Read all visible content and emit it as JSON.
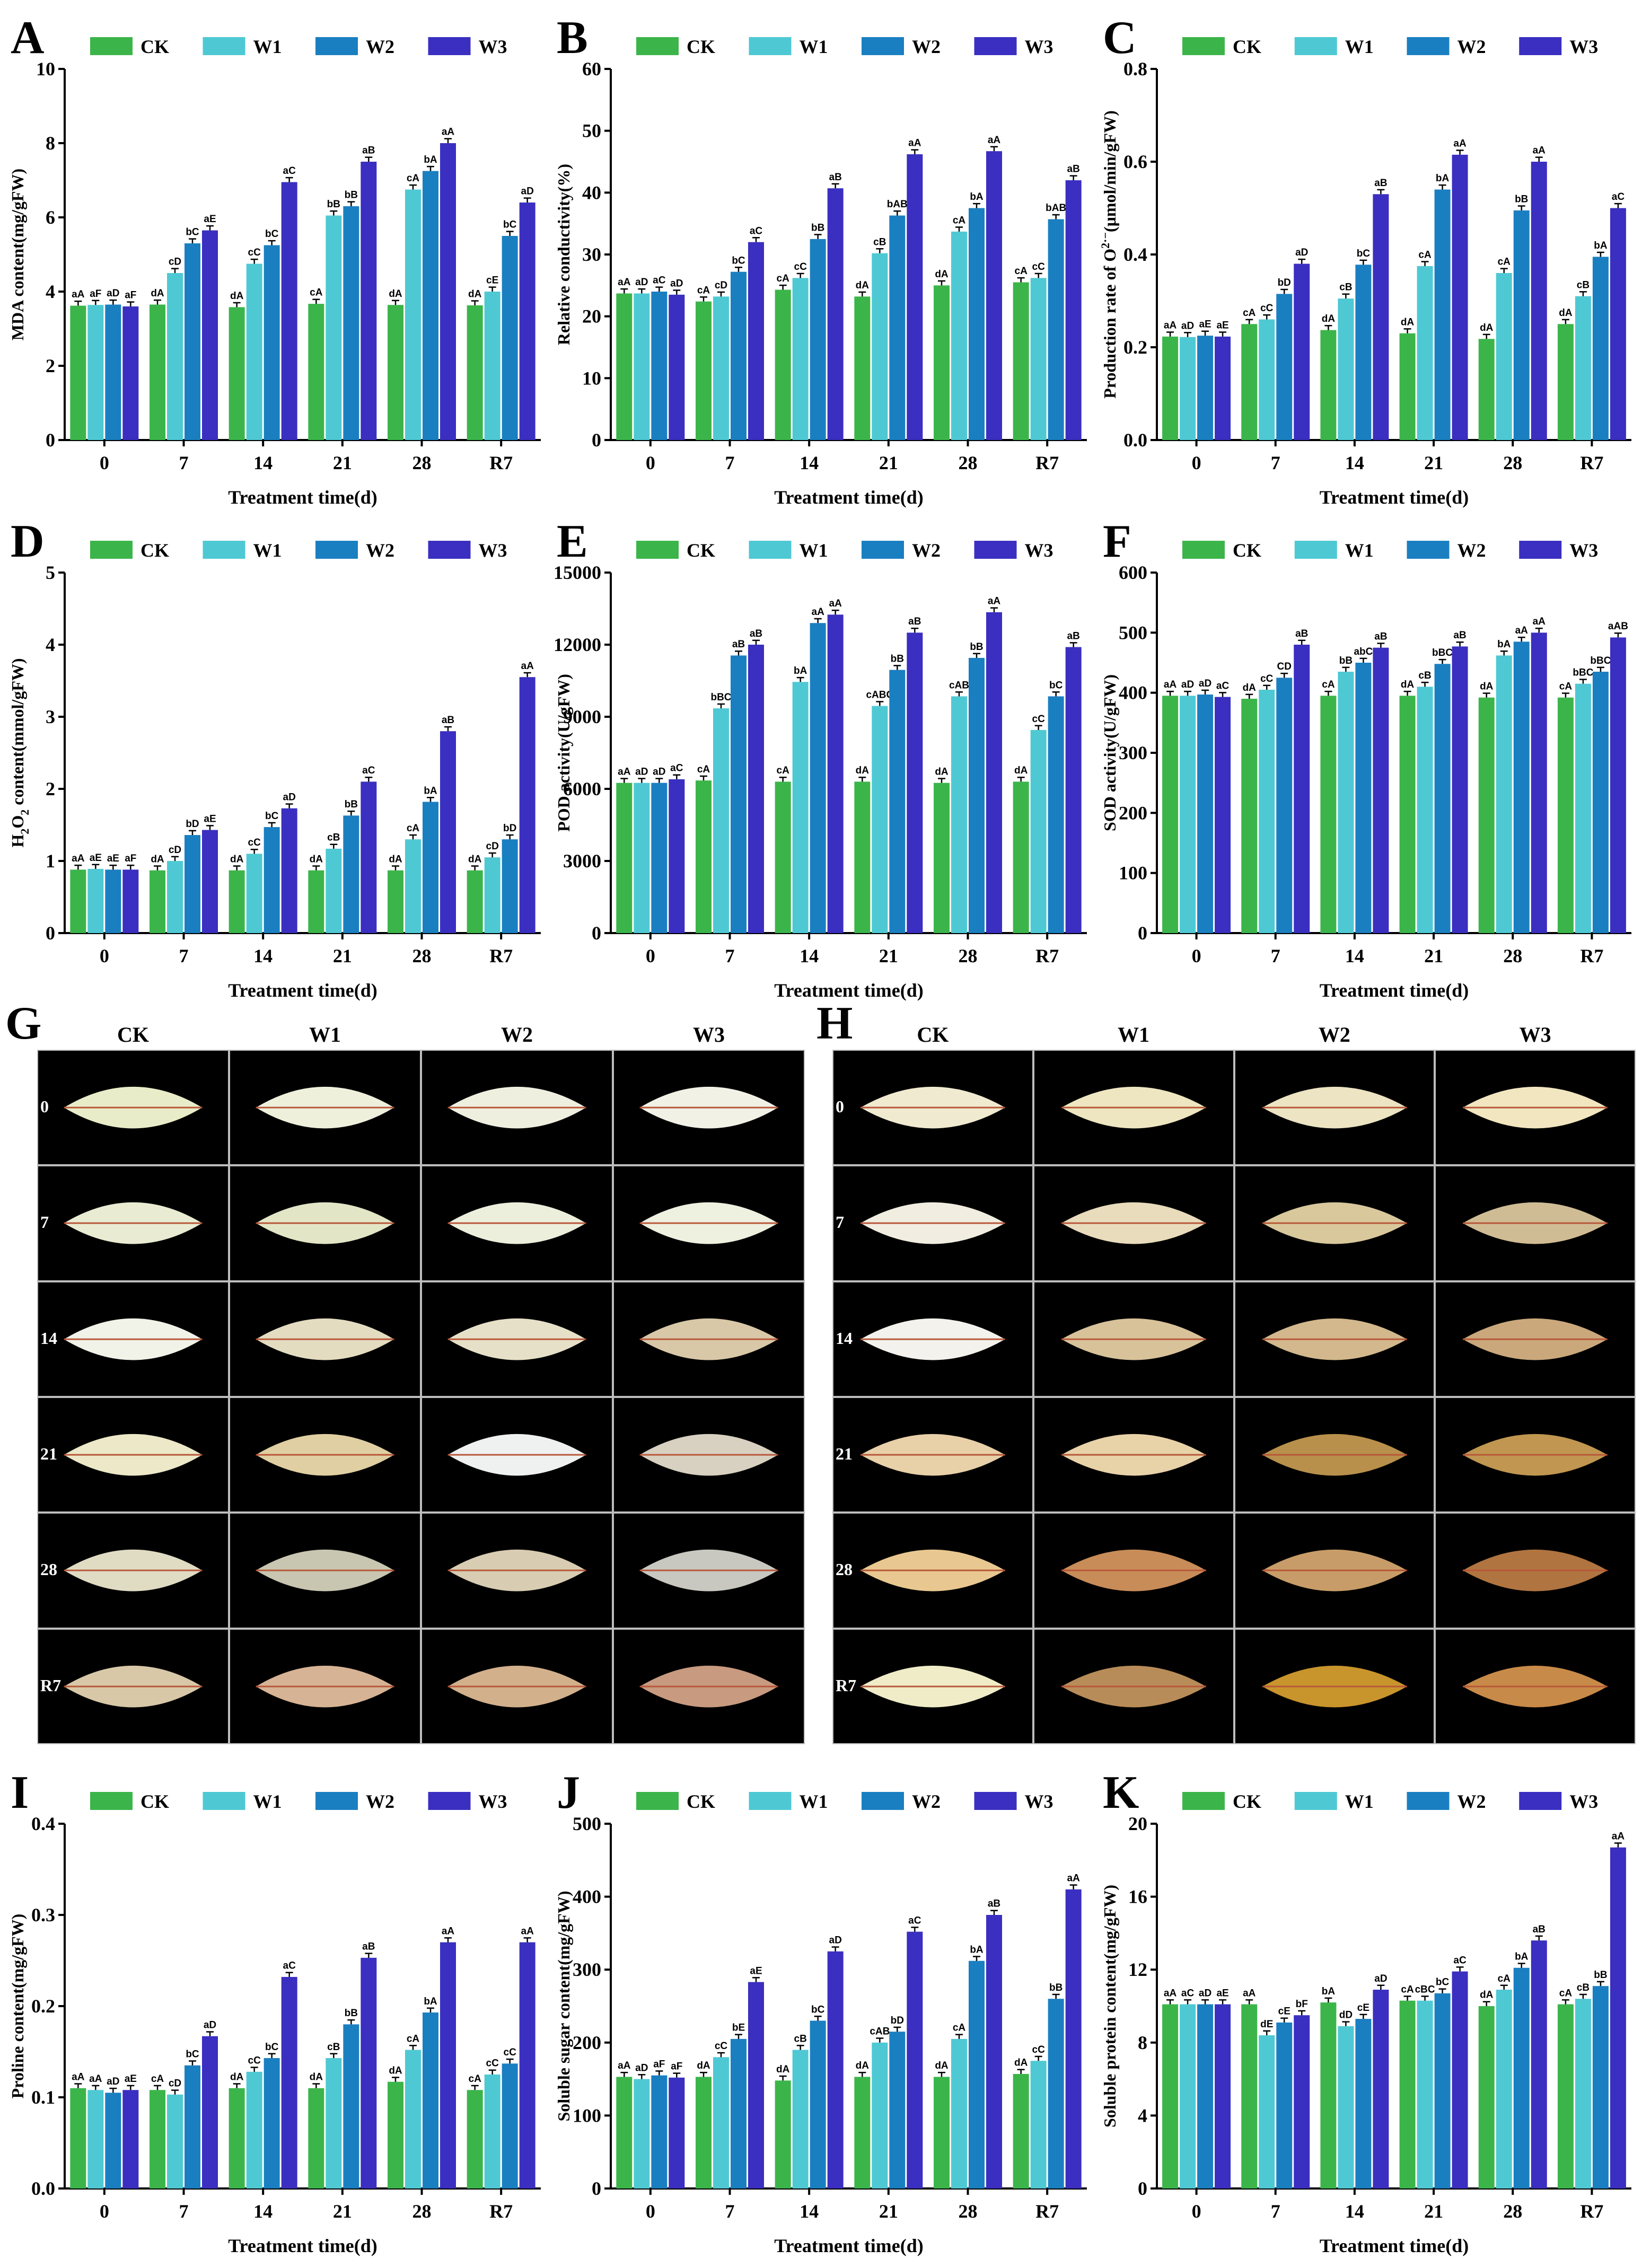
{
  "legend": {
    "series": [
      "CK",
      "W1",
      "W2",
      "W3"
    ],
    "colors": [
      "#3bb54a",
      "#4ec9d4",
      "#1a7fc1",
      "#3a2fc0"
    ]
  },
  "x_label": "Treatment time(d)",
  "categories": [
    "0",
    "7",
    "14",
    "21",
    "28",
    "R7"
  ],
  "chart_data": [
    {
      "panel": "A",
      "type": "bar",
      "ylabel": "MDA content(mg/gFW)",
      "ylim": [
        0,
        10
      ],
      "yticks": [
        "0",
        "2",
        "4",
        "6",
        "8",
        "10"
      ],
      "series": [
        {
          "name": "CK",
          "values": [
            3.62,
            3.65,
            3.58,
            3.67,
            3.64,
            3.63
          ]
        },
        {
          "name": "W1",
          "values": [
            3.64,
            4.5,
            4.75,
            6.05,
            6.75,
            4.0
          ]
        },
        {
          "name": "W2",
          "values": [
            3.65,
            5.3,
            5.25,
            6.3,
            7.25,
            5.5
          ]
        },
        {
          "name": "W3",
          "values": [
            3.6,
            5.65,
            6.95,
            7.5,
            8.0,
            6.4
          ]
        }
      ],
      "letters": [
        [
          "aA",
          "aF",
          "aD",
          "aF"
        ],
        [
          "dA",
          "cD",
          "bC",
          "aE"
        ],
        [
          "dA",
          "cC",
          "bC",
          "aC"
        ],
        [
          "cA",
          "bB",
          "bB",
          "aB"
        ],
        [
          "dA",
          "cA",
          "bA",
          "aA"
        ],
        [
          "dA",
          "cE",
          "bC",
          "aD"
        ]
      ]
    },
    {
      "panel": "B",
      "type": "bar",
      "ylabel": "Relative conductivity(%)",
      "ylim": [
        0,
        60
      ],
      "yticks": [
        "0",
        "10",
        "20",
        "30",
        "40",
        "50",
        "60"
      ],
      "series": [
        {
          "name": "CK",
          "values": [
            23.7,
            22.4,
            24.3,
            23.2,
            25.0,
            25.5
          ]
        },
        {
          "name": "W1",
          "values": [
            23.7,
            23.2,
            26.2,
            30.2,
            33.7,
            26.2
          ]
        },
        {
          "name": "W2",
          "values": [
            24.0,
            27.2,
            32.5,
            36.3,
            37.5,
            35.7
          ]
        },
        {
          "name": "W3",
          "values": [
            23.5,
            32.0,
            40.7,
            46.2,
            46.7,
            42.0
          ]
        }
      ],
      "letters": [
        [
          "aA",
          "aD",
          "aC",
          "aD"
        ],
        [
          "cA",
          "cD",
          "bC",
          "aC"
        ],
        [
          "cA",
          "cC",
          "bB",
          "aB"
        ],
        [
          "dA",
          "cB",
          "bAB",
          "aA"
        ],
        [
          "dA",
          "cA",
          "bA",
          "aA"
        ],
        [
          "cA",
          "cC",
          "bAB",
          "aB"
        ]
      ]
    },
    {
      "panel": "C",
      "type": "bar",
      "ylabel": "Production rate of O2·− (μmol/min/gFW)",
      "ylim": [
        0,
        0.8
      ],
      "yticks": [
        "0.0",
        "0.2",
        "0.4",
        "0.6",
        "0.8"
      ],
      "series": [
        {
          "name": "CK",
          "values": [
            0.223,
            0.25,
            0.237,
            0.23,
            0.218,
            0.25
          ]
        },
        {
          "name": "W1",
          "values": [
            0.222,
            0.26,
            0.305,
            0.375,
            0.36,
            0.31
          ]
        },
        {
          "name": "W2",
          "values": [
            0.225,
            0.315,
            0.378,
            0.54,
            0.495,
            0.395
          ]
        },
        {
          "name": "W3",
          "values": [
            0.223,
            0.38,
            0.53,
            0.615,
            0.6,
            0.5
          ]
        }
      ],
      "letters": [
        [
          "aA",
          "aD",
          "aE",
          "aE"
        ],
        [
          "cA",
          "cC",
          "bD",
          "aD"
        ],
        [
          "dA",
          "cB",
          "bC",
          "aB"
        ],
        [
          "dA",
          "cA",
          "bA",
          "aA"
        ],
        [
          "dA",
          "cA",
          "bB",
          "aA"
        ],
        [
          "dA",
          "cB",
          "bA",
          "aC"
        ]
      ]
    },
    {
      "panel": "D",
      "type": "bar",
      "ylabel": "H2O2 content(mmol/gFW)",
      "ylim": [
        0,
        5
      ],
      "yticks": [
        "0",
        "1",
        "2",
        "3",
        "4",
        "5"
      ],
      "series": [
        {
          "name": "CK",
          "values": [
            0.88,
            0.87,
            0.87,
            0.87,
            0.87,
            0.87
          ]
        },
        {
          "name": "W1",
          "values": [
            0.89,
            1.0,
            1.1,
            1.17,
            1.3,
            1.05
          ]
        },
        {
          "name": "W2",
          "values": [
            0.88,
            1.36,
            1.47,
            1.63,
            1.82,
            1.3
          ]
        },
        {
          "name": "W3",
          "values": [
            0.88,
            1.43,
            1.73,
            2.1,
            2.8,
            3.55
          ]
        }
      ],
      "letters": [
        [
          "aA",
          "aE",
          "aE",
          "aF"
        ],
        [
          "dA",
          "cD",
          "bD",
          "aE"
        ],
        [
          "dA",
          "cC",
          "bC",
          "aD"
        ],
        [
          "dA",
          "cB",
          "bB",
          "aC"
        ],
        [
          "dA",
          "cA",
          "bA",
          "aB"
        ],
        [
          "dA",
          "cD",
          "bD",
          "aA"
        ]
      ]
    },
    {
      "panel": "E",
      "type": "bar",
      "ylabel": "POD activity(U/gFW)",
      "ylim": [
        0,
        15000
      ],
      "yticks": [
        "0",
        "3000",
        "6000",
        "9000",
        "12000",
        "15000"
      ],
      "series": [
        {
          "name": "CK",
          "values": [
            6250,
            6350,
            6300,
            6300,
            6250,
            6300
          ]
        },
        {
          "name": "W1",
          "values": [
            6250,
            9350,
            10450,
            9450,
            9850,
            8450
          ]
        },
        {
          "name": "W2",
          "values": [
            6250,
            11550,
            12900,
            10950,
            11450,
            9850
          ]
        },
        {
          "name": "W3",
          "values": [
            6400,
            12000,
            13250,
            12500,
            13350,
            11900
          ]
        }
      ],
      "letters": [
        [
          "aA",
          "aD",
          "aD",
          "aC"
        ],
        [
          "cA",
          "bBC",
          "aB",
          "aB"
        ],
        [
          "cA",
          "bA",
          "aA",
          "aA"
        ],
        [
          "dA",
          "cABC",
          "bB",
          "aB"
        ],
        [
          "dA",
          "cAB",
          "bB",
          "aA"
        ],
        [
          "dA",
          "cC",
          "bC",
          "aB"
        ]
      ]
    },
    {
      "panel": "F",
      "type": "bar",
      "ylabel": "SOD activity(U/gFW)",
      "ylim": [
        0,
        600
      ],
      "yticks": [
        "0",
        "100",
        "200",
        "300",
        "400",
        "500",
        "600"
      ],
      "series": [
        {
          "name": "CK",
          "values": [
            395,
            390,
            395,
            395,
            392,
            392
          ]
        },
        {
          "name": "W1",
          "values": [
            395,
            405,
            435,
            410,
            462,
            415
          ]
        },
        {
          "name": "W2",
          "values": [
            397,
            425,
            450,
            448,
            485,
            435
          ]
        },
        {
          "name": "W3",
          "values": [
            393,
            480,
            475,
            477,
            500,
            492
          ]
        }
      ],
      "letters": [
        [
          "aA",
          "aD",
          "aD",
          "aC"
        ],
        [
          "dA",
          "cC",
          "CD",
          "aB"
        ],
        [
          "cA",
          "bB",
          "abC",
          "aB"
        ],
        [
          "dA",
          "cB",
          "bBC",
          "aB"
        ],
        [
          "dA",
          "bA",
          "aA",
          "aA"
        ],
        [
          "cA",
          "bBC",
          "bBC",
          "aAB"
        ]
      ]
    },
    {
      "panel": "I",
      "type": "bar",
      "ylabel": "Proline content(mg/gFW)",
      "ylim": [
        0,
        0.4
      ],
      "yticks": [
        "0.0",
        "0.1",
        "0.2",
        "0.3",
        "0.4"
      ],
      "series": [
        {
          "name": "CK",
          "values": [
            0.11,
            0.108,
            0.11,
            0.11,
            0.117,
            0.108
          ]
        },
        {
          "name": "W1",
          "values": [
            0.108,
            0.103,
            0.128,
            0.143,
            0.152,
            0.125
          ]
        },
        {
          "name": "W2",
          "values": [
            0.105,
            0.135,
            0.143,
            0.18,
            0.193,
            0.137
          ]
        },
        {
          "name": "W3",
          "values": [
            0.108,
            0.167,
            0.232,
            0.253,
            0.27,
            0.27
          ]
        }
      ],
      "letters": [
        [
          "aA",
          "aA",
          "aD",
          "aE"
        ],
        [
          "cA",
          "cD",
          "bC",
          "aD"
        ],
        [
          "dA",
          "cC",
          "bC",
          "aC"
        ],
        [
          "dA",
          "cB",
          "bB",
          "aB"
        ],
        [
          "dA",
          "cA",
          "bA",
          "aA"
        ],
        [
          "cA",
          "cC",
          "cC",
          "aA"
        ]
      ]
    },
    {
      "panel": "J",
      "type": "bar",
      "ylabel": "Soluble sugar content(mg/gFW)",
      "ylim": [
        0,
        500
      ],
      "yticks": [
        "0",
        "100",
        "200",
        "300",
        "400",
        "500"
      ],
      "series": [
        {
          "name": "CK",
          "values": [
            153,
            153,
            148,
            153,
            153,
            157
          ]
        },
        {
          "name": "W1",
          "values": [
            150,
            180,
            190,
            200,
            205,
            175
          ]
        },
        {
          "name": "W2",
          "values": [
            155,
            205,
            230,
            215,
            312,
            260
          ]
        },
        {
          "name": "W3",
          "values": [
            152,
            283,
            325,
            352,
            375,
            410
          ]
        }
      ],
      "letters": [
        [
          "aA",
          "aD",
          "aF",
          "aF"
        ],
        [
          "dA",
          "cC",
          "bE",
          "aE"
        ],
        [
          "dA",
          "cB",
          "bC",
          "aD"
        ],
        [
          "dA",
          "cAB",
          "bD",
          "aC"
        ],
        [
          "dA",
          "cA",
          "bA",
          "aB"
        ],
        [
          "dA",
          "cC",
          "bB",
          "aA"
        ]
      ]
    },
    {
      "panel": "K",
      "type": "bar",
      "ylabel": "Soluble protein content(mg/gFW)",
      "ylim": [
        0,
        20
      ],
      "yticks": [
        "0",
        "4",
        "8",
        "12",
        "16",
        "20"
      ],
      "series": [
        {
          "name": "CK",
          "values": [
            10.1,
            10.1,
            10.2,
            10.3,
            10.0,
            10.1
          ]
        },
        {
          "name": "W1",
          "values": [
            10.1,
            8.4,
            8.9,
            10.3,
            10.9,
            10.4
          ]
        },
        {
          "name": "W2",
          "values": [
            10.1,
            9.1,
            9.3,
            10.7,
            12.1,
            11.1
          ]
        },
        {
          "name": "W3",
          "values": [
            10.1,
            9.5,
            10.9,
            11.9,
            13.6,
            18.7
          ]
        }
      ],
      "letters": [
        [
          "aA",
          "aC",
          "aD",
          "aE"
        ],
        [
          "aA",
          "dE",
          "cE",
          "bF"
        ],
        [
          "bA",
          "dD",
          "cE",
          "aD"
        ],
        [
          "cA",
          "cBC",
          "bC",
          "aC"
        ],
        [
          "dA",
          "cA",
          "bA",
          "aB"
        ],
        [
          "cA",
          "cB",
          "bB",
          "aA"
        ]
      ]
    }
  ],
  "photo_grids": [
    {
      "panel": "G",
      "columns": [
        "CK",
        "W1",
        "W2",
        "W3"
      ],
      "rows": [
        "0",
        "7",
        "14",
        "21",
        "28",
        "R7"
      ],
      "leaf_tint": [
        [
          "#e9ecc8",
          "#eef0dc",
          "#efefe0",
          "#f1f1e6"
        ],
        [
          "#e9ecd2",
          "#e3e6c6",
          "#ecefdc",
          "#eef0e0"
        ],
        [
          "#f1f2e8",
          "#e4dcc0",
          "#e6e0c8",
          "#d8c8a8"
        ],
        [
          "#ece8c8",
          "#e0cfa2",
          "#eef1f0",
          "#d8d0c0"
        ],
        [
          "#e0dcc4",
          "#c8c6b0",
          "#d8ccb2",
          "#c8c8c0"
        ],
        [
          "#d8c8a8",
          "#d6b394",
          "#d2b08c",
          "#c89a80"
        ]
      ]
    },
    {
      "panel": "H",
      "columns": [
        "CK",
        "W1",
        "W2",
        "W3"
      ],
      "rows": [
        "0",
        "7",
        "14",
        "21",
        "28",
        "R7"
      ],
      "leaf_tint": [
        [
          "#f0ead0",
          "#eee6c0",
          "#ece4c2",
          "#f1e6c0"
        ],
        [
          "#f1ede0",
          "#e8dcbc",
          "#d8c89c",
          "#d0bc94"
        ],
        [
          "#f3f2ec",
          "#d8c29a",
          "#d2b88c",
          "#caa87c"
        ],
        [
          "#e8d0a8",
          "#e8d2a8",
          "#b8904c",
          "#c09650"
        ],
        [
          "#e8c890",
          "#c88c58",
          "#c89c68",
          "#b07440"
        ],
        [
          "#f0ecc8",
          "#b88c58",
          "#c8942c",
          "#c88a48"
        ]
      ]
    }
  ]
}
